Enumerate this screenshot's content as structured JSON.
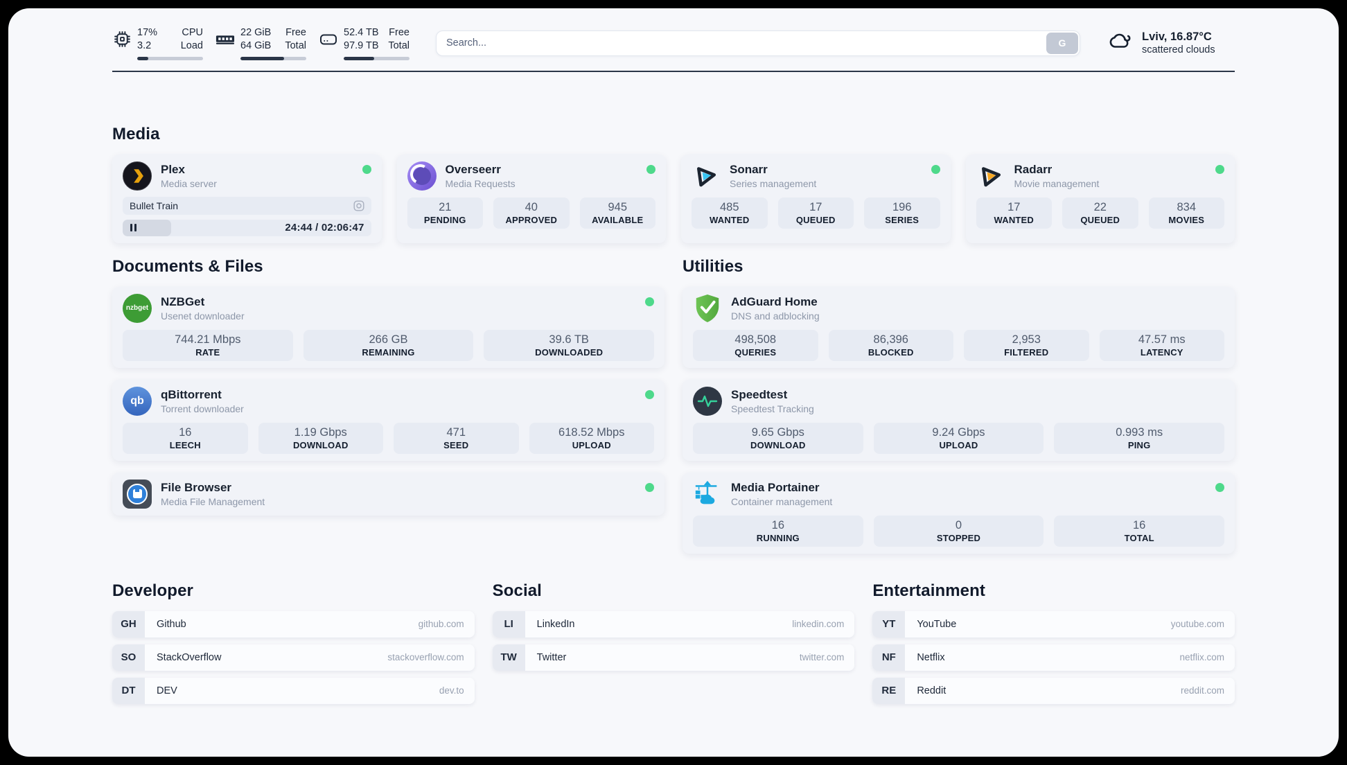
{
  "colors": {
    "status_online": "#4ed98b",
    "progress_fill": "#2b3648",
    "plex_accent": "#e5a00d",
    "sonarr_accent": "#38c6f4",
    "radarr_accent": "#f7a823",
    "adguard_green": "#5fb354",
    "portainer_blue": "#1ca9e0"
  },
  "header": {
    "stats": [
      {
        "icon": "cpu-icon",
        "value1": "17%",
        "value2": "3.2",
        "label1": "CPU",
        "label2": "Load",
        "percent": 17
      },
      {
        "icon": "memory-icon",
        "value1": "22 GiB",
        "value2": "64 GiB",
        "label1": "Free",
        "label2": "Total",
        "percent": 66
      },
      {
        "icon": "disk-icon",
        "value1": "52.4 TB",
        "value2": "97.9 TB",
        "label1": "Free",
        "label2": "Total",
        "percent": 46
      }
    ],
    "search": {
      "placeholder": "Search...",
      "button": "G"
    },
    "weather": {
      "icon": "cloud-icon",
      "line1": "Lviv, 16.87°C",
      "line2": "scattered clouds"
    }
  },
  "media": {
    "title": "Media",
    "plex": {
      "icon": "plex-icon",
      "name": "Plex",
      "desc": "Media server",
      "now_playing": "Bullet Train",
      "time": "24:44 / 02:06:47",
      "progress_percent": 19.5
    },
    "overseerr": {
      "icon": "overseerr-icon",
      "name": "Overseerr",
      "desc": "Media Requests",
      "stats": [
        {
          "value": "21",
          "label": "PENDING"
        },
        {
          "value": "40",
          "label": "APPROVED"
        },
        {
          "value": "945",
          "label": "AVAILABLE"
        }
      ]
    },
    "sonarr": {
      "icon": "sonarr-icon",
      "name": "Sonarr",
      "desc": "Series management",
      "stats": [
        {
          "value": "485",
          "label": "WANTED"
        },
        {
          "value": "17",
          "label": "QUEUED"
        },
        {
          "value": "196",
          "label": "SERIES"
        }
      ]
    },
    "radarr": {
      "icon": "radarr-icon",
      "name": "Radarr",
      "desc": "Movie management",
      "stats": [
        {
          "value": "17",
          "label": "WANTED"
        },
        {
          "value": "22",
          "label": "QUEUED"
        },
        {
          "value": "834",
          "label": "MOVIES"
        }
      ]
    }
  },
  "documents": {
    "title": "Documents & Files",
    "nzbget": {
      "icon": "nzbget-icon",
      "icon_text": "nzbget",
      "name": "NZBGet",
      "desc": "Usenet downloader",
      "stats": [
        {
          "value": "744.21 Mbps",
          "label": "RATE"
        },
        {
          "value": "266 GB",
          "label": "REMAINING"
        },
        {
          "value": "39.6 TB",
          "label": "DOWNLOADED"
        }
      ]
    },
    "qbittorrent": {
      "icon": "qbittorrent-icon",
      "icon_text": "qb",
      "name": "qBittorrent",
      "desc": "Torrent downloader",
      "stats": [
        {
          "value": "16",
          "label": "LEECH"
        },
        {
          "value": "1.19 Gbps",
          "label": "DOWNLOAD"
        },
        {
          "value": "471",
          "label": "SEED"
        },
        {
          "value": "618.52 Mbps",
          "label": "UPLOAD"
        }
      ]
    },
    "filebrowser": {
      "icon": "filebrowser-icon",
      "name": "File Browser",
      "desc": "Media File Management"
    }
  },
  "utilities": {
    "title": "Utilities",
    "adguard": {
      "icon": "adguard-icon",
      "name": "AdGuard Home",
      "desc": "DNS and adblocking",
      "stats": [
        {
          "value": "498,508",
          "label": "QUERIES"
        },
        {
          "value": "86,396",
          "label": "BLOCKED"
        },
        {
          "value": "2,953",
          "label": "FILTERED"
        },
        {
          "value": "47.57 ms",
          "label": "LATENCY"
        }
      ]
    },
    "speedtest": {
      "icon": "speedtest-icon",
      "name": "Speedtest",
      "desc": "Speedtest Tracking",
      "stats": [
        {
          "value": "9.65 Gbps",
          "label": "DOWNLOAD"
        },
        {
          "value": "9.24 Gbps",
          "label": "UPLOAD"
        },
        {
          "value": "0.993 ms",
          "label": "PING"
        }
      ]
    },
    "portainer": {
      "icon": "portainer-icon",
      "name": "Media Portainer",
      "desc": "Container management",
      "stats": [
        {
          "value": "16",
          "label": "RUNNING"
        },
        {
          "value": "0",
          "label": "STOPPED"
        },
        {
          "value": "16",
          "label": "TOTAL"
        }
      ]
    }
  },
  "bookmarks": [
    {
      "title": "Developer",
      "links": [
        {
          "abbr": "GH",
          "name": "Github",
          "url": "github.com"
        },
        {
          "abbr": "SO",
          "name": "StackOverflow",
          "url": "stackoverflow.com"
        },
        {
          "abbr": "DT",
          "name": "DEV",
          "url": "dev.to"
        }
      ]
    },
    {
      "title": "Social",
      "links": [
        {
          "abbr": "LI",
          "name": "LinkedIn",
          "url": "linkedin.com"
        },
        {
          "abbr": "TW",
          "name": "Twitter",
          "url": "twitter.com"
        }
      ]
    },
    {
      "title": "Entertainment",
      "links": [
        {
          "abbr": "YT",
          "name": "YouTube",
          "url": "youtube.com"
        },
        {
          "abbr": "NF",
          "name": "Netflix",
          "url": "netflix.com"
        },
        {
          "abbr": "RE",
          "name": "Reddit",
          "url": "reddit.com"
        }
      ]
    }
  ]
}
